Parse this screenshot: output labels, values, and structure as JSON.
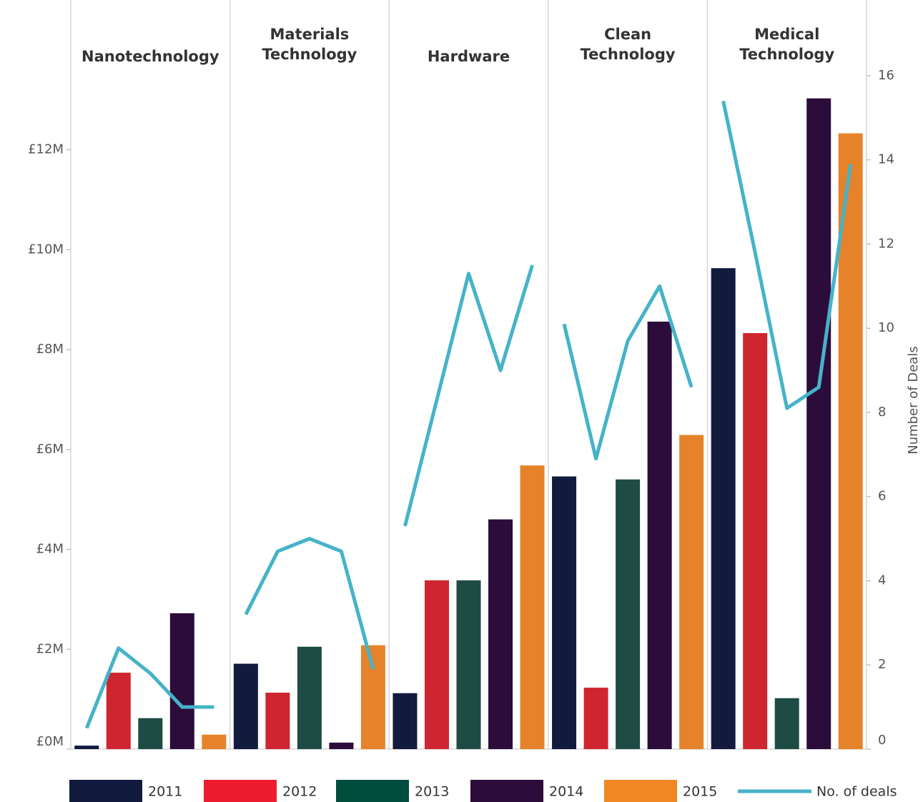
{
  "chart_data": {
    "type": "bar",
    "categories": [
      "Nanotechnology",
      "Materials Technology",
      "Hardware",
      "Clean Technology",
      "Medical Technology"
    ],
    "series": [
      {
        "name": "2011",
        "color": "#121a3e",
        "legend_color": "#121a3e",
        "values": [
          0.07,
          1.71,
          1.12,
          5.46,
          9.63
        ]
      },
      {
        "name": "2012",
        "color": "#cf2530",
        "legend_color": "#ed1c2e",
        "values": [
          1.53,
          1.13,
          3.38,
          1.23,
          8.33
        ]
      },
      {
        "name": "2013",
        "color": "#1f4b45",
        "legend_color": "#004d40",
        "values": [
          0.62,
          2.05,
          3.38,
          5.4,
          1.02
        ]
      },
      {
        "name": "2014",
        "color": "#2c0c3a",
        "legend_color": "#2c0c3a",
        "values": [
          2.72,
          0.13,
          4.6,
          8.56,
          13.03
        ]
      },
      {
        "name": "2015",
        "color": "#e6832a",
        "legend_color": "#f08722",
        "values": [
          0.29,
          2.08,
          5.68,
          6.29,
          12.33
        ]
      },
      {
        "name": "No. of deals",
        "type": "line",
        "axis": "y2",
        "color": "#45b3c9",
        "values": [
          [
            0.5,
            2.4,
            1.8,
            1,
            1
          ],
          [
            3.2,
            4.7,
            5,
            4.7,
            1.9
          ],
          [
            5.3,
            8.3,
            11.3,
            9,
            11.5
          ],
          [
            10.1,
            6.9,
            9.7,
            11,
            8.6
          ],
          [
            15.4,
            11.8,
            8.1,
            8.6,
            13.9
          ]
        ]
      }
    ],
    "ylim": [
      0,
      15
    ],
    "yticks": [
      {
        "value": 0,
        "label": "£0M"
      },
      {
        "value": 2,
        "label": "£2M"
      },
      {
        "value": 4,
        "label": "£4M"
      },
      {
        "value": 6,
        "label": "£6M"
      },
      {
        "value": 8,
        "label": "£8M"
      },
      {
        "value": 10,
        "label": "£10M"
      },
      {
        "value": 12,
        "label": "£12M"
      }
    ],
    "y2label": "Number of Deals",
    "y2lim": [
      0,
      17.8
    ],
    "y2ticks": [
      0,
      2,
      4,
      6,
      8,
      10,
      12,
      14,
      16
    ],
    "legend": "bottom"
  }
}
